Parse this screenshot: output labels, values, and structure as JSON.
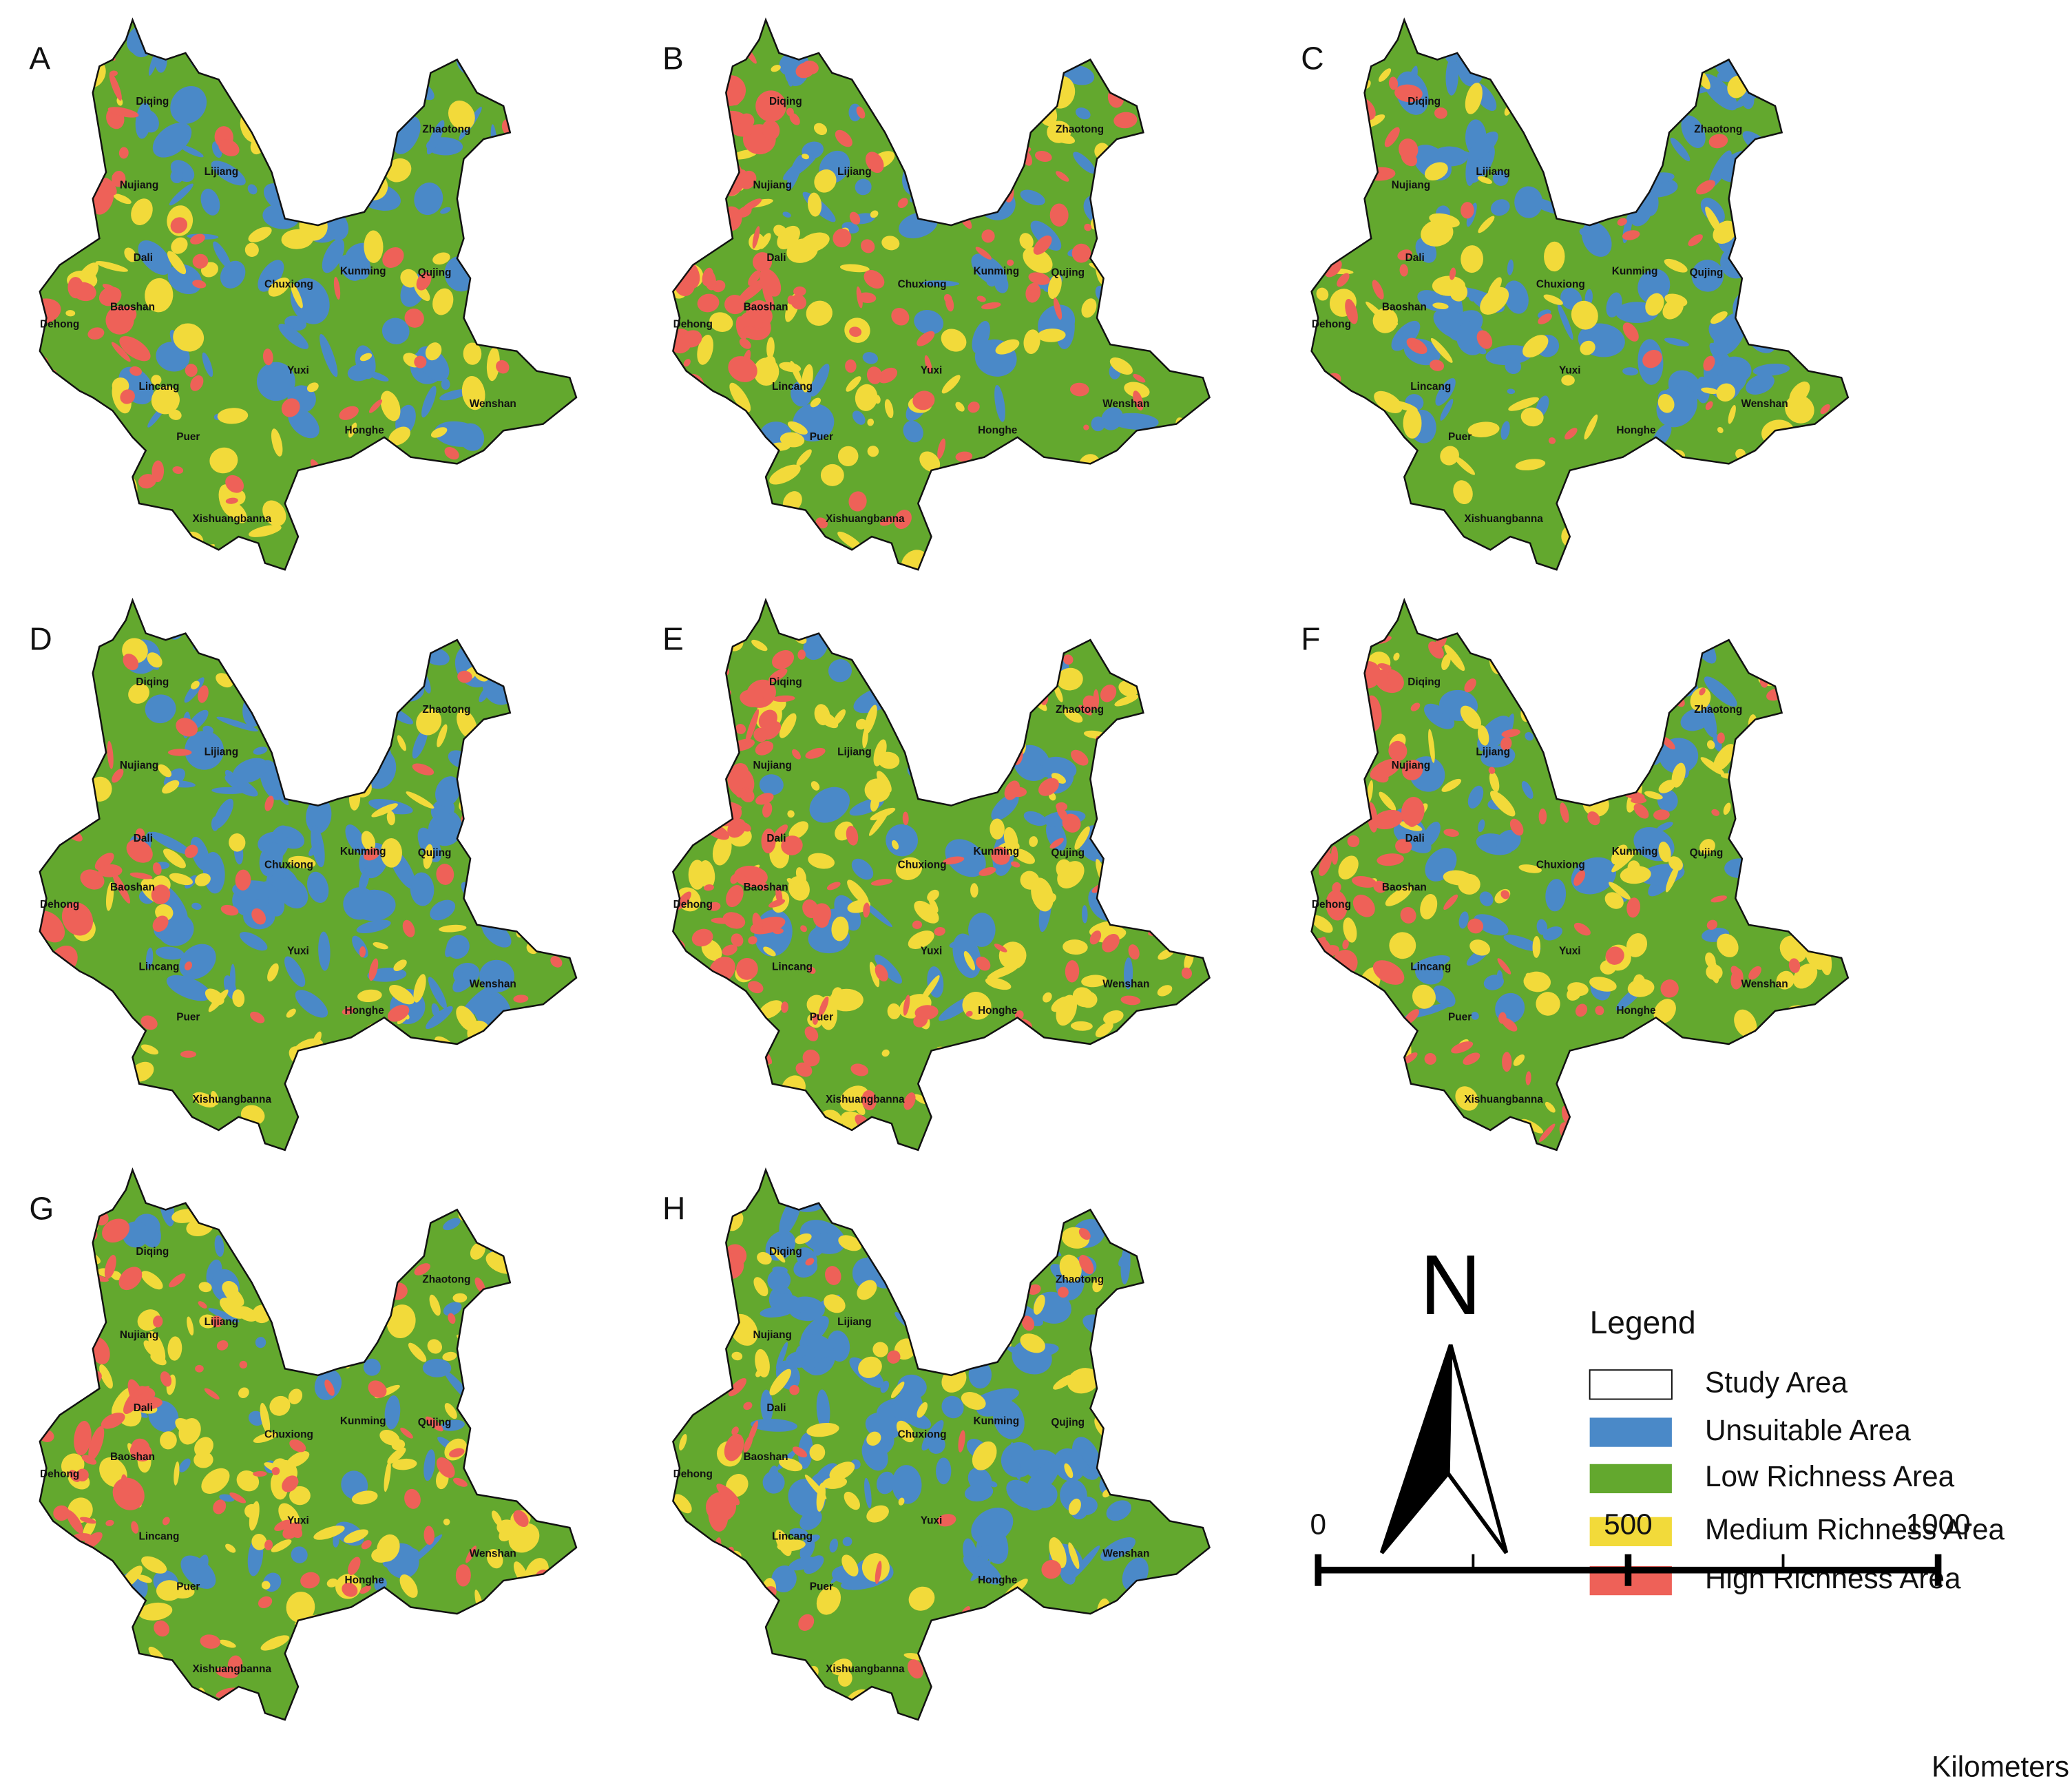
{
  "panel_labels": [
    "A",
    "B",
    "C",
    "D",
    "E",
    "F",
    "G",
    "H"
  ],
  "cities": [
    "Diqing",
    "Zhaotong",
    "Nujiang",
    "Lijiang",
    "Dali",
    "Kunming",
    "Qujing",
    "Chuxiong",
    "Dehong",
    "Baoshan",
    "Yuxi",
    "Lincang",
    "Wenshan",
    "Puer",
    "Honghe",
    "Xishuangbanna"
  ],
  "north": "N",
  "legend": {
    "title": "Legend",
    "items": [
      {
        "name": "Study Area",
        "color": "#ffffff"
      },
      {
        "name": "Unsuitable Area",
        "color": "#4a89c8"
      },
      {
        "name": "Low Richness Area",
        "color": "#63a82e"
      },
      {
        "name": "Medium Richness Area",
        "color": "#f2da3a"
      },
      {
        "name": "High Richness Area",
        "color": "#ee6158"
      }
    ]
  },
  "scale_bar": {
    "ticks": [
      0,
      500,
      1000
    ],
    "unit": "Kilometers"
  }
}
